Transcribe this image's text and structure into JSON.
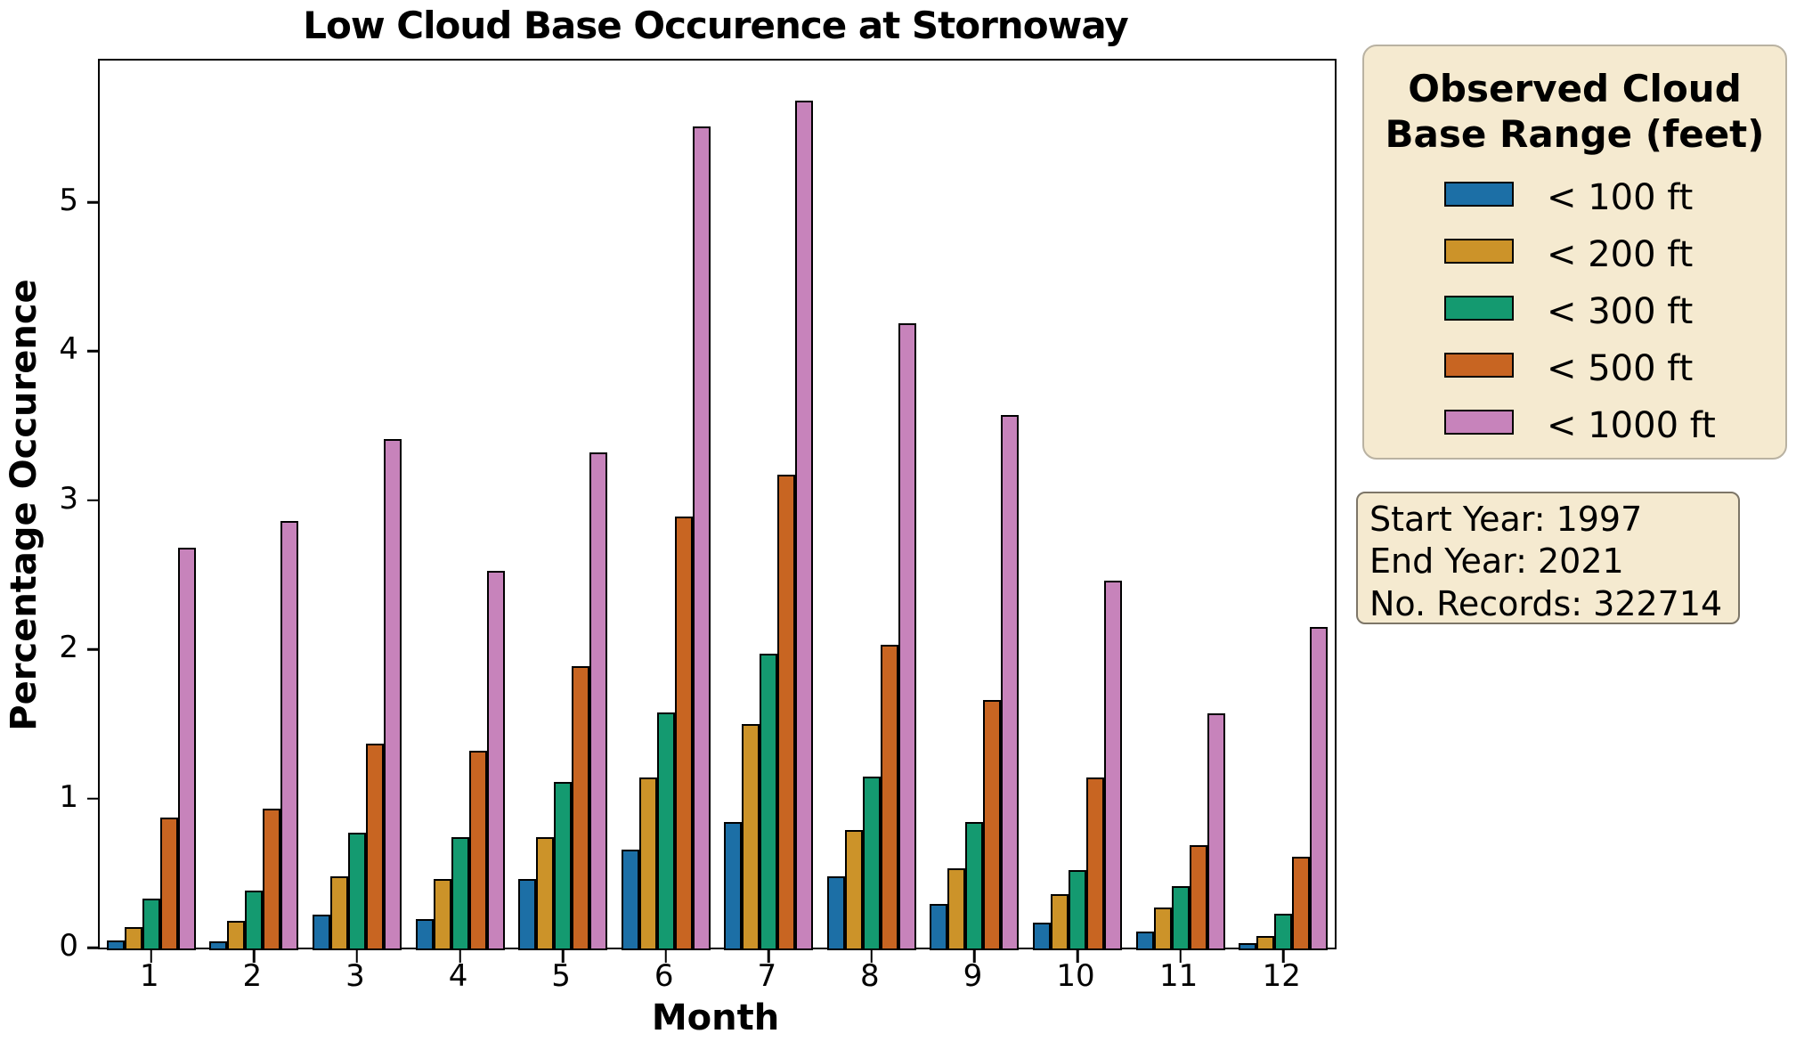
{
  "title": "Low Cloud Base Occurence at Stornoway",
  "xlabel": "Month",
  "ylabel": "Percentage Occurence",
  "legend": {
    "title": "Observed Cloud Base Range (feet)",
    "items": [
      {
        "label": "< 100 ft",
        "color": "#1c6fa6"
      },
      {
        "label": "< 200 ft",
        "color": "#cc9329"
      },
      {
        "label": "< 300 ft",
        "color": "#149a70"
      },
      {
        "label": "< 500 ft",
        "color": "#c86522"
      },
      {
        "label": "< 1000 ft",
        "color": "#c783bb"
      }
    ]
  },
  "info_box": {
    "lines": [
      "Start Year: 1997",
      "End Year: 2021",
      "No. Records: 322714"
    ]
  },
  "chart_data": {
    "type": "bar",
    "title": "Low Cloud Base Occurence at Stornoway",
    "xlabel": "Month",
    "ylabel": "Percentage Occurence",
    "categories": [
      1,
      2,
      3,
      4,
      5,
      6,
      7,
      8,
      9,
      10,
      11,
      12
    ],
    "series": [
      {
        "name": "< 100 ft",
        "color": "#1c6fa6",
        "values": [
          0.05,
          0.04,
          0.22,
          0.19,
          0.46,
          0.66,
          0.84,
          0.48,
          0.29,
          0.17,
          0.11,
          0.03
        ]
      },
      {
        "name": "< 200 ft",
        "color": "#cc9329",
        "values": [
          0.14,
          0.18,
          0.48,
          0.46,
          0.74,
          1.14,
          1.5,
          0.79,
          0.53,
          0.36,
          0.27,
          0.08
        ]
      },
      {
        "name": "< 300 ft",
        "color": "#149a70",
        "values": [
          0.33,
          0.38,
          0.77,
          0.74,
          1.11,
          1.58,
          1.97,
          1.15,
          0.84,
          0.52,
          0.41,
          0.23
        ]
      },
      {
        "name": "< 500 ft",
        "color": "#c86522",
        "values": [
          0.87,
          0.93,
          1.37,
          1.32,
          1.89,
          2.89,
          3.17,
          2.03,
          1.66,
          1.14,
          0.69,
          0.61
        ]
      },
      {
        "name": "< 1000 ft",
        "color": "#c783bb",
        "values": [
          2.68,
          2.86,
          3.41,
          2.53,
          3.32,
          5.51,
          5.68,
          4.19,
          3.57,
          2.46,
          1.57,
          2.15
        ]
      }
    ],
    "ylim": [
      0,
      5.95
    ],
    "yticks": [
      0,
      1,
      2,
      3,
      4,
      5
    ],
    "grid": false,
    "bar_edge_color": "#000000",
    "legend_position": "outside-upper-right"
  }
}
